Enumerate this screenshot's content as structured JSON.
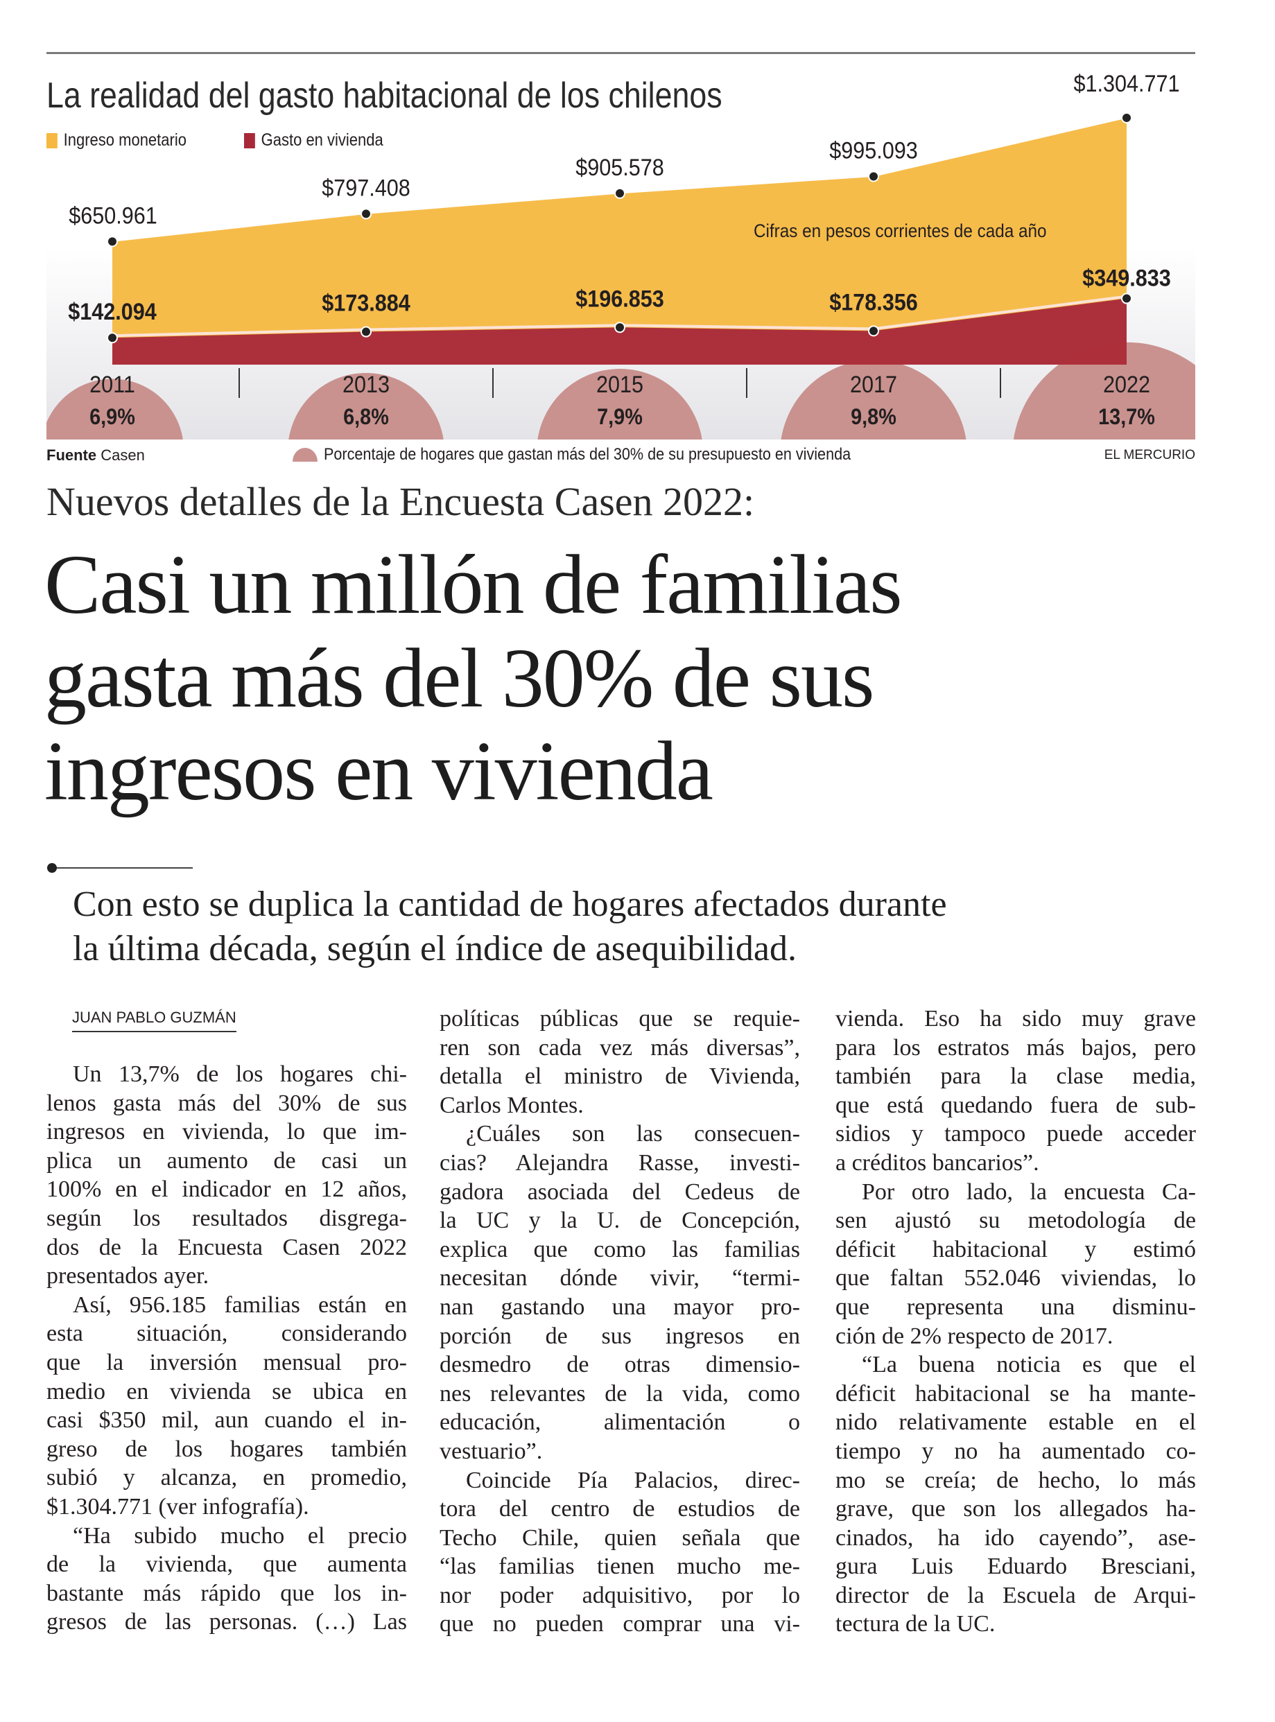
{
  "chart_data": {
    "type": "area",
    "title": "La realidad del gasto habitacional de los chilenos",
    "categories": [
      "2011",
      "2013",
      "2015",
      "2017",
      "2022"
    ],
    "series": [
      {
        "name": "Ingreso monetario",
        "color": "#f6b840",
        "values": [
          650961,
          797408,
          905578,
          995093,
          1304771
        ],
        "labels": [
          "$650.961",
          "$797.408",
          "$905.578",
          "$995.093",
          "$1.304.771"
        ]
      },
      {
        "name": "Gasto en vivienda",
        "color": "#a8283a",
        "values": [
          142094,
          173884,
          196853,
          178356,
          349833
        ],
        "labels": [
          "$142.094",
          "$173.884",
          "$196.853",
          "$178.356",
          "$349.833"
        ]
      }
    ],
    "percent_series": {
      "name": "Porcentaje de hogares que gastan más del 30% de su presupuesto en vivienda",
      "color": "#c9928f",
      "values": [
        6.9,
        6.8,
        7.9,
        9.8,
        13.7
      ],
      "labels": [
        "6,9%",
        "6,8%",
        "7,9%",
        "9,8%",
        "13,7%"
      ]
    },
    "annotation": "Cifras en pesos corrientes de cada año",
    "source_label": "Fuente",
    "source": "Casen",
    "brand": "EL MERCURIO"
  },
  "article": {
    "kicker": "Nuevos detalles de la Encuesta Casen 2022:",
    "headline": [
      "Casi un millón de familias",
      "gasta más del 30% de sus",
      "ingresos en vivienda"
    ],
    "deck": [
      "Con esto se duplica la cantidad de hogares afectados durante",
      "la última década, según el índice de asequibilidad."
    ],
    "byline": "JUAN PABLO GUZMÁN",
    "columns": [
      [
        {
          "indent": true,
          "lines": [
            "Un 13,7% de los hogares chi-",
            "lenos gasta más del 30% de sus",
            "ingresos en vivienda, lo que im-",
            "plica un aumento de casi un",
            "100% en el indicador en 12 años,",
            "según los resultados disgrega-",
            "dos de la Encuesta Casen 2022",
            "presentados ayer."
          ]
        },
        {
          "indent": true,
          "lines": [
            "Así, 956.185 familias están en",
            "esta situación, considerando",
            "que la inversión mensual pro-",
            "medio en vivienda se ubica en",
            "casi $350 mil, aun cuando el in-",
            "greso de los hogares también",
            "subió y alcanza, en promedio,",
            "$1.304.771 (ver infografía)."
          ]
        },
        {
          "indent": true,
          "lines": [
            "“Ha subido mucho el precio",
            "de la vivienda, que aumenta",
            "bastante más rápido que los in-",
            "gresos de las personas. (…) Las"
          ],
          "cont": true
        }
      ],
      [
        {
          "indent": false,
          "lines": [
            "políticas públicas que se requie-",
            "ren son cada vez más diversas”,",
            "detalla el ministro de Vivienda,",
            "Carlos Montes."
          ]
        },
        {
          "indent": true,
          "lines": [
            "¿Cuáles son las consecuen-",
            "cias? Alejandra Rasse, investi-",
            "gadora asociada del Cedeus de",
            "la UC y la U. de Concepción,",
            "explica que como las familias",
            "necesitan dónde vivir, “termi-",
            "nan gastando una mayor pro-",
            "porción de sus ingresos en",
            "desmedro de otras dimensio-",
            "nes relevantes de la vida, como",
            "educación, alimentación o",
            "vestuario”."
          ]
        },
        {
          "indent": true,
          "lines": [
            "Coincide Pía Palacios, direc-",
            "tora del centro de estudios de",
            "Techo Chile, quien señala que",
            "“las familias tienen mucho me-",
            "nor poder adquisitivo, por lo",
            "que no pueden comprar una vi-"
          ],
          "cont": true
        }
      ],
      [
        {
          "indent": false,
          "lines": [
            "vienda. Eso ha sido muy grave",
            "para los estratos más bajos, pero",
            "también para la clase media,",
            "que está quedando fuera de sub-",
            "sidios y tampoco puede acceder",
            "a créditos bancarios”."
          ]
        },
        {
          "indent": true,
          "lines": [
            "Por otro lado, la encuesta Ca-",
            "sen ajustó su metodología de",
            "déficit habitacional y estimó",
            "que faltan 552.046 viviendas, lo",
            "que representa una disminu-",
            "ción de 2% respecto de 2017."
          ]
        },
        {
          "indent": true,
          "lines": [
            "“La buena noticia es que el",
            "déficit habitacional se ha mante-",
            "nido relativamente estable en el",
            "tiempo y no ha aumentado co-",
            "mo se creía; de hecho, lo más",
            "grave, que son los allegados ha-",
            "cinados, ha ido cayendo”, ase-",
            "gura Luis Eduardo Bresciani,",
            "director de la Escuela de Arqui-",
            "tectura de la UC."
          ]
        }
      ]
    ]
  }
}
